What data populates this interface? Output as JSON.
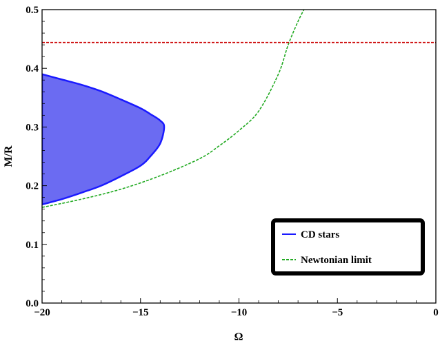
{
  "chart_data": {
    "type": "area",
    "xlabel": "Ω",
    "ylabel": "M/R",
    "xlim": [
      -20,
      0
    ],
    "ylim": [
      0,
      0.5
    ],
    "x_ticks": [
      -20,
      -15,
      -10,
      -5,
      0
    ],
    "x_tick_labels": [
      "−20",
      "−15",
      "−10",
      "−5",
      "0"
    ],
    "y_ticks": [
      0,
      0.1,
      0.2,
      0.3,
      0.4,
      0.5
    ],
    "y_tick_labels": [
      "0.0",
      "0.1",
      "0.2",
      "0.3",
      "0.4",
      "0.5"
    ],
    "grid": false,
    "legend_position": "bottom-right",
    "series": [
      {
        "name": "CD stars",
        "kind": "filled-region",
        "color": "#1a1aff",
        "fill": "#6b6bf2",
        "upper": [
          [
            -20,
            0.39
          ],
          [
            -19,
            0.381
          ],
          [
            -18,
            0.372
          ],
          [
            -17,
            0.361
          ],
          [
            -16,
            0.347
          ],
          [
            -15,
            0.332
          ],
          [
            -14.5,
            0.322
          ],
          [
            -14,
            0.311
          ],
          [
            -13.8,
            0.3
          ]
        ],
        "lower": [
          [
            -20,
            0.168
          ],
          [
            -19,
            0.177
          ],
          [
            -18,
            0.188
          ],
          [
            -17,
            0.2
          ],
          [
            -16,
            0.216
          ],
          [
            -15,
            0.234
          ],
          [
            -14.5,
            0.25
          ],
          [
            -14,
            0.272
          ],
          [
            -13.8,
            0.3
          ]
        ]
      },
      {
        "name": "Newtonian limit",
        "kind": "dashed-line",
        "color": "#22aa22",
        "points": [
          [
            -20,
            0.163
          ],
          [
            -18,
            0.177
          ],
          [
            -16,
            0.194
          ],
          [
            -14,
            0.217
          ],
          [
            -12,
            0.246
          ],
          [
            -11,
            0.268
          ],
          [
            -10,
            0.294
          ],
          [
            -9,
            0.327
          ],
          [
            -8,
            0.39
          ],
          [
            -7.5,
            0.44
          ],
          [
            -7,
            0.48
          ],
          [
            -6.7,
            0.5
          ]
        ]
      },
      {
        "kind": "dashed-line",
        "color": "#cc0000",
        "points": [
          [
            -20,
            0.444
          ],
          [
            0,
            0.444
          ]
        ]
      }
    ]
  }
}
